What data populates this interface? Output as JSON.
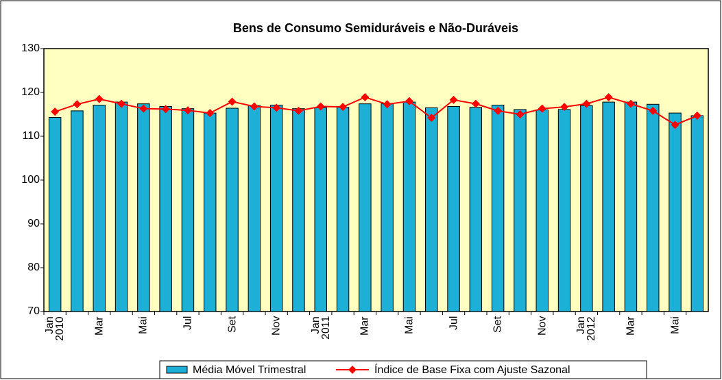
{
  "chart_data": {
    "type": "bar",
    "title": "Bens de Consumo Semiduráveis e Não-Duráveis",
    "categories": [
      "Jan\n2010",
      null,
      "Mar",
      null,
      "Mai",
      null,
      "Jul",
      null,
      "Set",
      null,
      "Nov",
      null,
      "Jan\n2011",
      null,
      "Mar",
      null,
      "Mai",
      null,
      "Jul",
      null,
      "Set",
      null,
      "Nov",
      null,
      "Jan\n2012",
      null,
      "Mar",
      null,
      "Mai",
      null
    ],
    "series": [
      {
        "name": "Média Móvel Trimestral",
        "type": "bar",
        "color": "#1cb0d6",
        "values": [
          114.3,
          115.8,
          117.1,
          117.8,
          117.4,
          116.8,
          116.3,
          115.3,
          116.4,
          117.0,
          117.1,
          116.3,
          116.5,
          116.6,
          117.4,
          117.4,
          117.8,
          116.5,
          116.8,
          116.6,
          117.1,
          116.1,
          116.0,
          116.1,
          117.0,
          117.8,
          117.8,
          117.3,
          115.3,
          114.7
        ]
      },
      {
        "name": "Índice de Base Fixa com Ajuste Sazonal",
        "type": "line",
        "color": "#ff0000",
        "values": [
          115.6,
          117.3,
          118.5,
          117.4,
          116.3,
          116.2,
          115.9,
          115.3,
          117.9,
          116.8,
          116.5,
          115.8,
          116.8,
          116.7,
          118.9,
          117.3,
          118.0,
          114.2,
          118.3,
          117.4,
          115.8,
          115.0,
          116.3,
          116.7,
          117.4,
          118.9,
          117.4,
          115.8,
          112.6,
          114.7
        ]
      }
    ],
    "ylim": [
      70,
      130
    ],
    "yticks": [
      70,
      80,
      90,
      100,
      110,
      120,
      130
    ],
    "grid": false,
    "legend": "bottom"
  }
}
